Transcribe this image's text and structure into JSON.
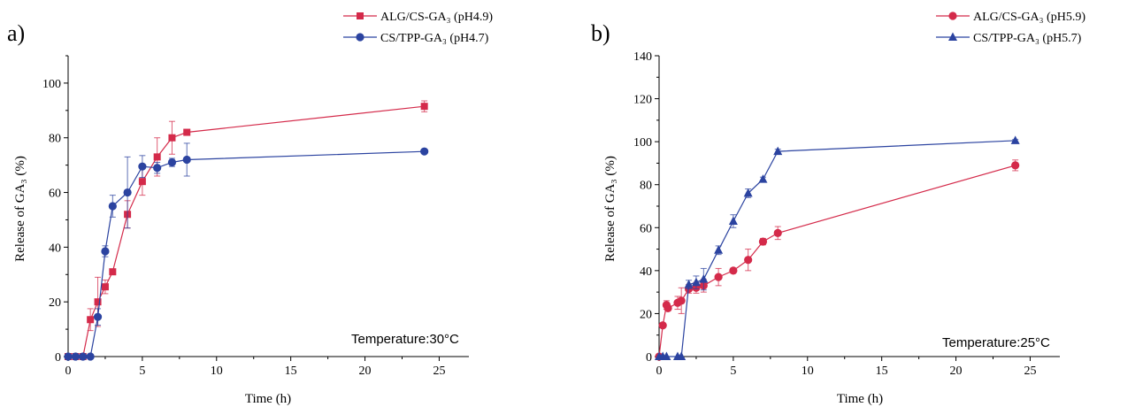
{
  "chart_data": [
    {
      "type": "line",
      "panel_label": "a)",
      "xlabel": "Time (h)",
      "ylabel": "Release of GA₃ (%)",
      "xlim": [
        0,
        27
      ],
      "ylim": [
        0,
        110
      ],
      "xticks": [
        0,
        5,
        10,
        15,
        20,
        25
      ],
      "yticks": [
        0,
        20,
        40,
        60,
        80,
        100
      ],
      "annotation": "Temperature:30°C",
      "legend_position": "top-right",
      "series": [
        {
          "name": "ALG/CS-GA₃ (pH4.9)",
          "color": "#d42a4a",
          "marker": "square",
          "x": [
            0,
            0.5,
            1,
            1.5,
            2,
            2.5,
            3,
            4,
            5,
            6,
            7,
            8,
            24
          ],
          "y": [
            0,
            0,
            0,
            13.5,
            20,
            25.5,
            31,
            52,
            64,
            73,
            80,
            82,
            91.5
          ],
          "err": [
            0,
            0,
            0,
            4,
            9,
            2.5,
            1,
            5,
            5,
            7,
            6,
            1,
            2
          ]
        },
        {
          "name": "CS/TPP-GA₃ (pH4.7)",
          "color": "#2b43a0",
          "marker": "circle",
          "x": [
            0,
            0.5,
            1,
            1.5,
            2,
            2.5,
            3,
            4,
            5,
            6,
            7,
            8,
            24
          ],
          "y": [
            0,
            0,
            0,
            0,
            14.5,
            38.5,
            55,
            60,
            69.5,
            69,
            71,
            72,
            75
          ],
          "err": [
            0,
            0,
            0,
            0,
            3,
            2,
            4,
            13,
            4,
            2,
            1.5,
            6,
            0.5
          ]
        }
      ]
    },
    {
      "type": "line",
      "panel_label": "b)",
      "xlabel": "Time (h)",
      "ylabel": "Release of GA₃ (%)",
      "xlim": [
        0,
        27
      ],
      "ylim": [
        0,
        140
      ],
      "xticks": [
        0,
        5,
        10,
        15,
        20,
        25
      ],
      "yticks": [
        0,
        20,
        40,
        60,
        80,
        100,
        120,
        140
      ],
      "annotation": "Temperature:25°C",
      "legend_position": "top-right",
      "series": [
        {
          "name": "ALG/CS-GA₃ (pH5.9)",
          "color": "#d42a4a",
          "marker": "circle",
          "x": [
            0,
            0.25,
            0.5,
            0.6,
            1.25,
            1.5,
            2,
            2.5,
            3,
            4,
            5,
            6,
            7,
            8,
            24
          ],
          "y": [
            0,
            14.5,
            24,
            22.5,
            25,
            26,
            31.5,
            32,
            33,
            37,
            40,
            45,
            53.5,
            57.5,
            89
          ],
          "err": [
            0,
            1,
            2,
            1,
            3,
            6,
            2,
            2.5,
            3,
            4,
            1,
            5,
            1.5,
            3,
            2.5
          ]
        },
        {
          "name": "CS/TPP-GA₃ (pH5.7)",
          "color": "#2b43a0",
          "marker": "triangle",
          "x": [
            0,
            0.25,
            0.5,
            1.25,
            1.5,
            2,
            2.5,
            3,
            4,
            5,
            6,
            7,
            8,
            24
          ],
          "y": [
            0,
            0,
            0,
            0,
            0,
            33.5,
            34.5,
            36,
            49.5,
            63,
            76,
            82.5,
            95.5,
            100.5
          ],
          "err": [
            0,
            0,
            0,
            0,
            0,
            2,
            3,
            5,
            2,
            3,
            2,
            1,
            1,
            0.5
          ]
        }
      ]
    }
  ]
}
